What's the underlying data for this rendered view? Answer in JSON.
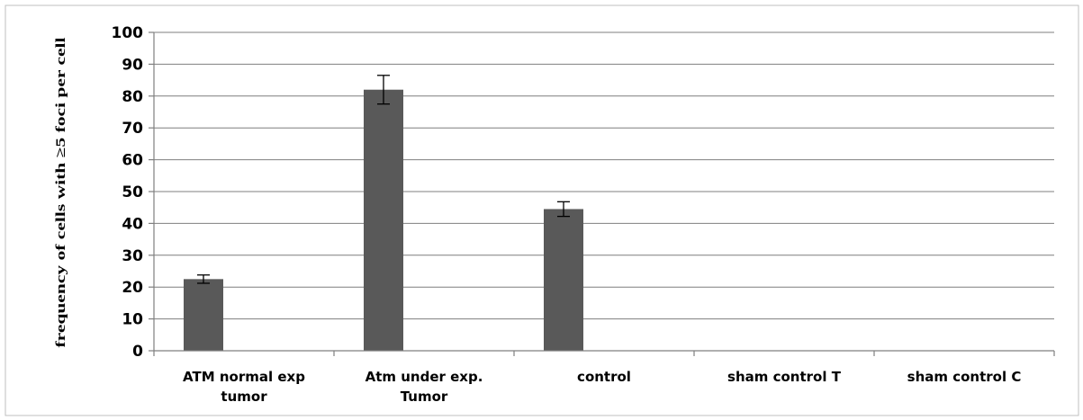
{
  "chart_data": {
    "type": "bar",
    "categories": [
      [
        "ATM normal exp",
        "tumor"
      ],
      [
        "Atm under exp.",
        "Tumor"
      ],
      [
        "control"
      ],
      [
        "sham control T"
      ],
      [
        "sham control C"
      ]
    ],
    "values": [
      22.5,
      82,
      44.5,
      0,
      0
    ],
    "errors": [
      1.3,
      4.5,
      2.3,
      0,
      0
    ],
    "ylabel": "frequency of cells with ≥5 foci per cell",
    "ylim": [
      0,
      100
    ],
    "yticks": [
      0,
      10,
      20,
      30,
      40,
      50,
      60,
      70,
      80,
      90,
      100
    ],
    "grid": true,
    "bar_color": "#595959",
    "grid_color": "#7f7f7f"
  }
}
